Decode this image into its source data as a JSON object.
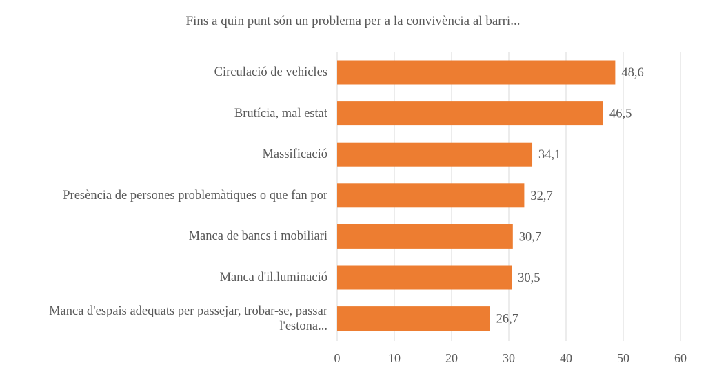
{
  "chart_data": {
    "type": "bar",
    "orientation": "horizontal",
    "title": "Fins a quin punt són un problema per a la convivència al barri...",
    "categories": [
      "Circulació de vehicles",
      "Brutícia, mal estat",
      "Massificació",
      "Presència de persones problemàtiques o que fan por",
      "Manca de bancs i mobiliari",
      "Manca d'il.luminació",
      "Manca d'espais adequats per passejar, trobar-se, passar l'estona..."
    ],
    "values": [
      48.6,
      46.5,
      34.1,
      32.7,
      30.7,
      30.5,
      26.7
    ],
    "value_labels": [
      "48,6",
      "46,5",
      "34,1",
      "32,7",
      "30,7",
      "30,5",
      "26,7"
    ],
    "xlim": [
      0,
      60
    ],
    "x_ticks": [
      0,
      10,
      20,
      30,
      40,
      50,
      60
    ],
    "grid": true,
    "legend": "none",
    "xlabel": "",
    "ylabel": "",
    "colors": {
      "bar": "#ED7D31",
      "grid": "#D9D9D9",
      "text": "#595959"
    }
  }
}
